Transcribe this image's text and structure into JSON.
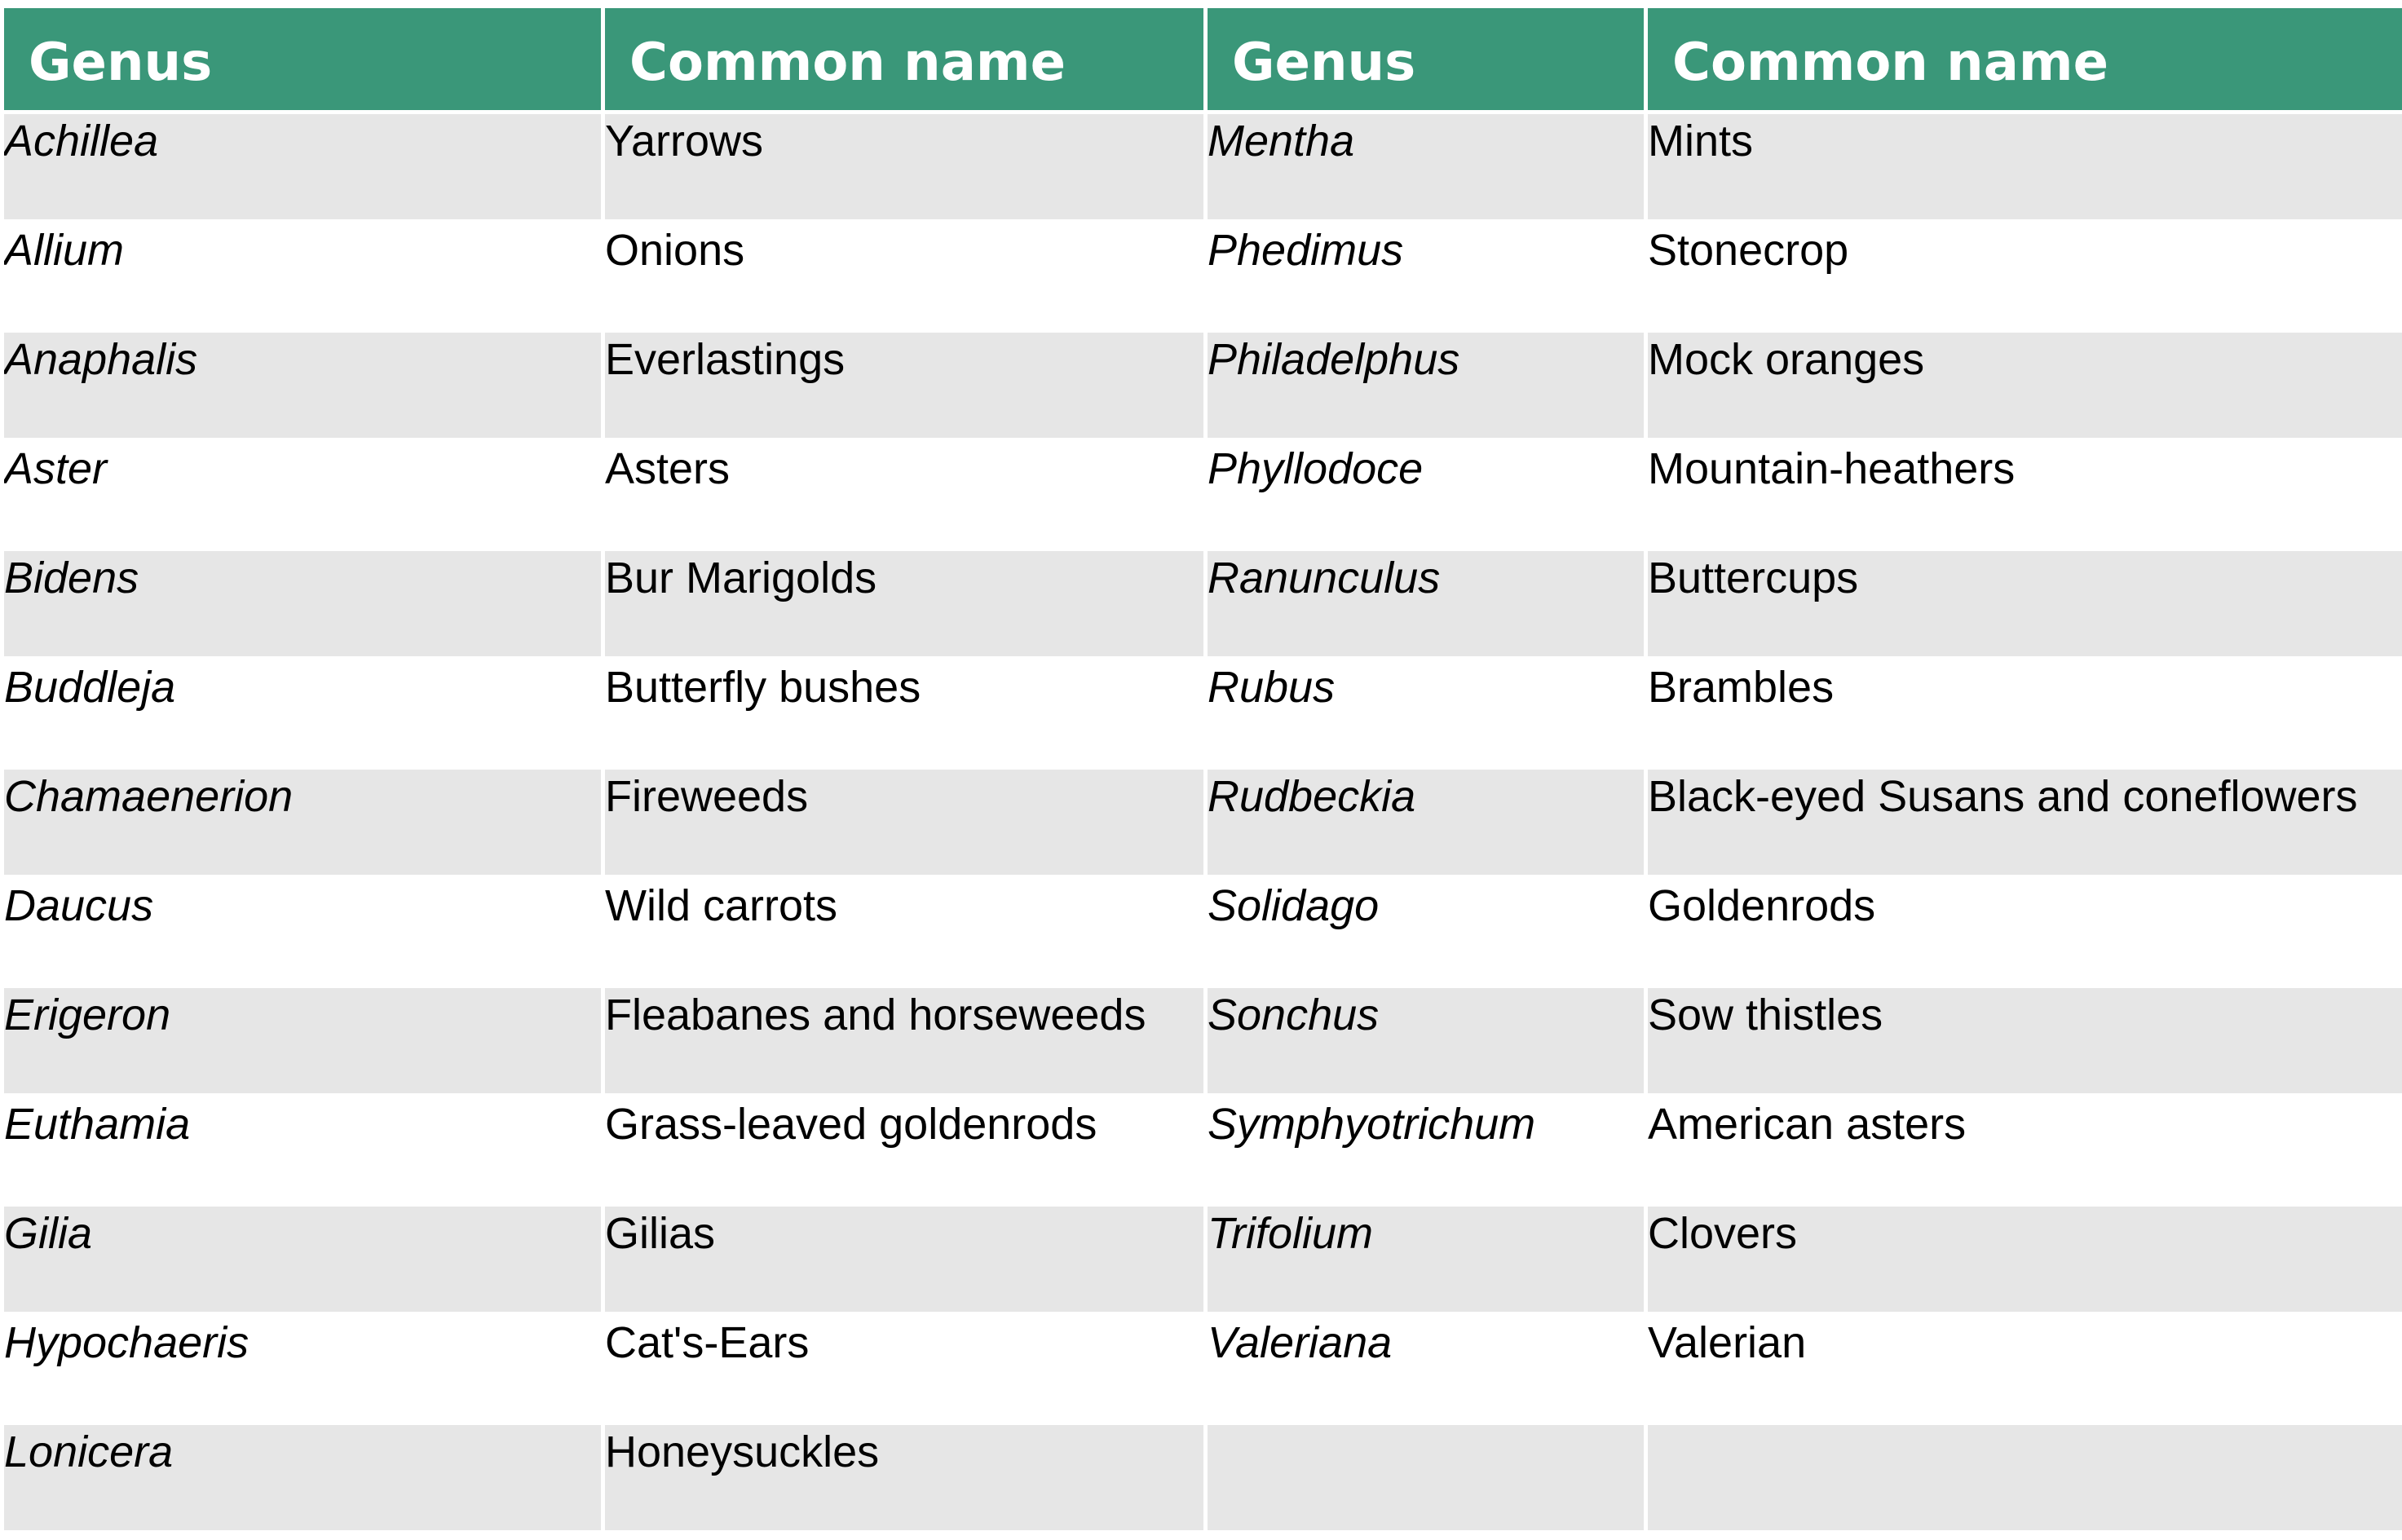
{
  "colors": {
    "header_background": "#3a9779",
    "header_text": "#ffffff",
    "shaded_row": "#e6e6e6",
    "plain_row": "#ffffff"
  },
  "headers": [
    "Genus",
    "Common name",
    "Genus",
    "Common name"
  ],
  "rows": [
    [
      "Achillea",
      "Yarrows",
      "Mentha",
      "Mints"
    ],
    [
      "Allium",
      "Onions",
      "Phedimus",
      "Stonecrop"
    ],
    [
      "Anaphalis",
      "Everlastings",
      "Philadelphus",
      "Mock oranges"
    ],
    [
      "Aster",
      "Asters",
      "Phyllodoce",
      "Mountain-heathers"
    ],
    [
      "Bidens",
      "Bur Marigolds",
      "Ranunculus",
      "Buttercups"
    ],
    [
      "Buddleja",
      "Butterfly bushes",
      "Rubus",
      "Brambles"
    ],
    [
      "Chamaenerion",
      "Fireweeds",
      "Rudbeckia",
      "Black-eyed Susans and coneflowers"
    ],
    [
      "Daucus",
      "Wild carrots",
      "Solidago",
      "Goldenrods"
    ],
    [
      "Erigeron",
      "Fleabanes and horseweeds",
      "Sonchus",
      "Sow thistles"
    ],
    [
      "Euthamia",
      "Grass-leaved goldenrods",
      "Symphyotrichum",
      "American asters"
    ],
    [
      "Gilia",
      "Gilias",
      "Trifolium",
      "Clovers"
    ],
    [
      "Hypochaeris",
      "Cat's-Ears",
      "Valeriana",
      "Valerian"
    ],
    [
      "Lonicera",
      "Honeysuckles",
      "",
      ""
    ]
  ]
}
